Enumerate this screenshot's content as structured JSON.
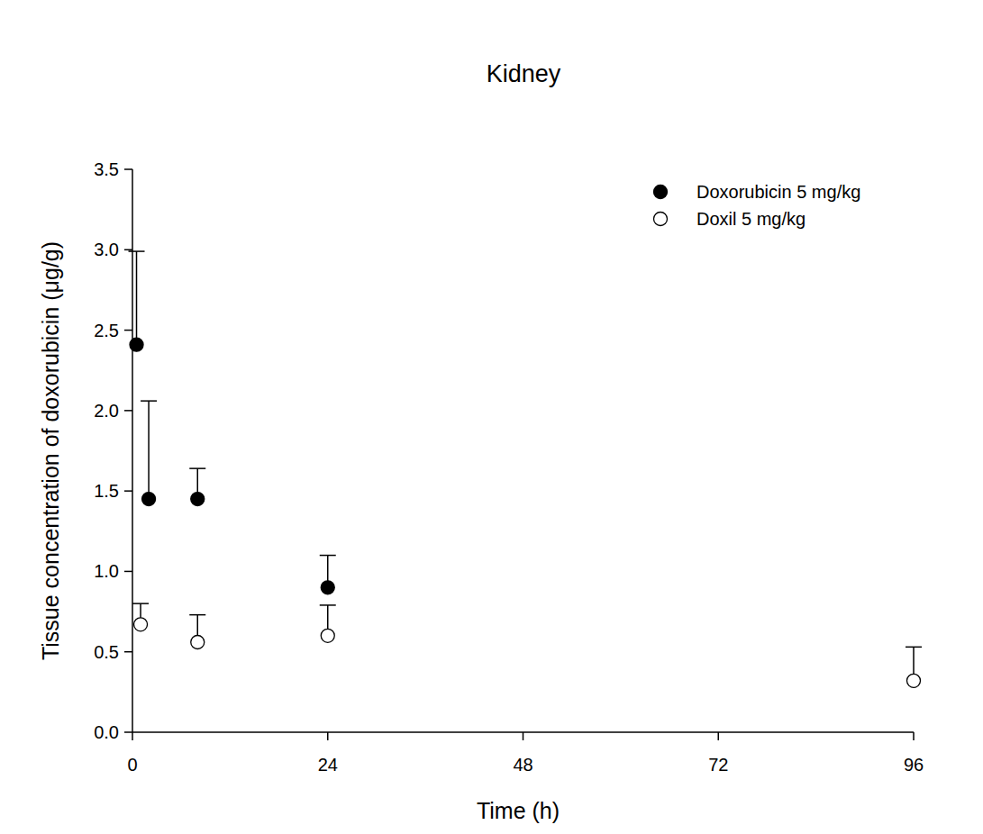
{
  "chart_data": {
    "type": "scatter",
    "title": "Kidney",
    "x_label": "Time (h)",
    "y_label": "Tissue concentration of doxorubicin (μg/g)",
    "xlim": [
      0,
      96
    ],
    "xticks": [
      0,
      24,
      48,
      72,
      96
    ],
    "ylim": [
      0,
      3.5
    ],
    "yticks": [
      {
        "value": 0,
        "label": "0.0"
      },
      0.5,
      {
        "value": 1,
        "label": "1.0"
      },
      1.5,
      {
        "value": 2,
        "label": "2.0"
      },
      2.5,
      {
        "value": 3,
        "label": "3.0"
      },
      3.5
    ],
    "legend": "top-right",
    "series": [
      {
        "name": "Doxorubicin 5 mg/kg",
        "color": "#000000",
        "marker": "circle",
        "x": [
          0.5,
          2,
          8,
          24
        ],
        "values": [
          2.41,
          1.45,
          1.45,
          0.9
        ],
        "errors": [
          0.58,
          0.61,
          0.19,
          0.2
        ]
      },
      {
        "name": "Doxil 5 mg/kg",
        "color": "#000000",
        "marker": "open-circle",
        "x": [
          1,
          8,
          24,
          96
        ],
        "values": [
          0.67,
          0.56,
          0.6,
          0.32
        ],
        "errors": [
          0.13,
          0.17,
          0.19,
          0.21
        ]
      }
    ]
  }
}
